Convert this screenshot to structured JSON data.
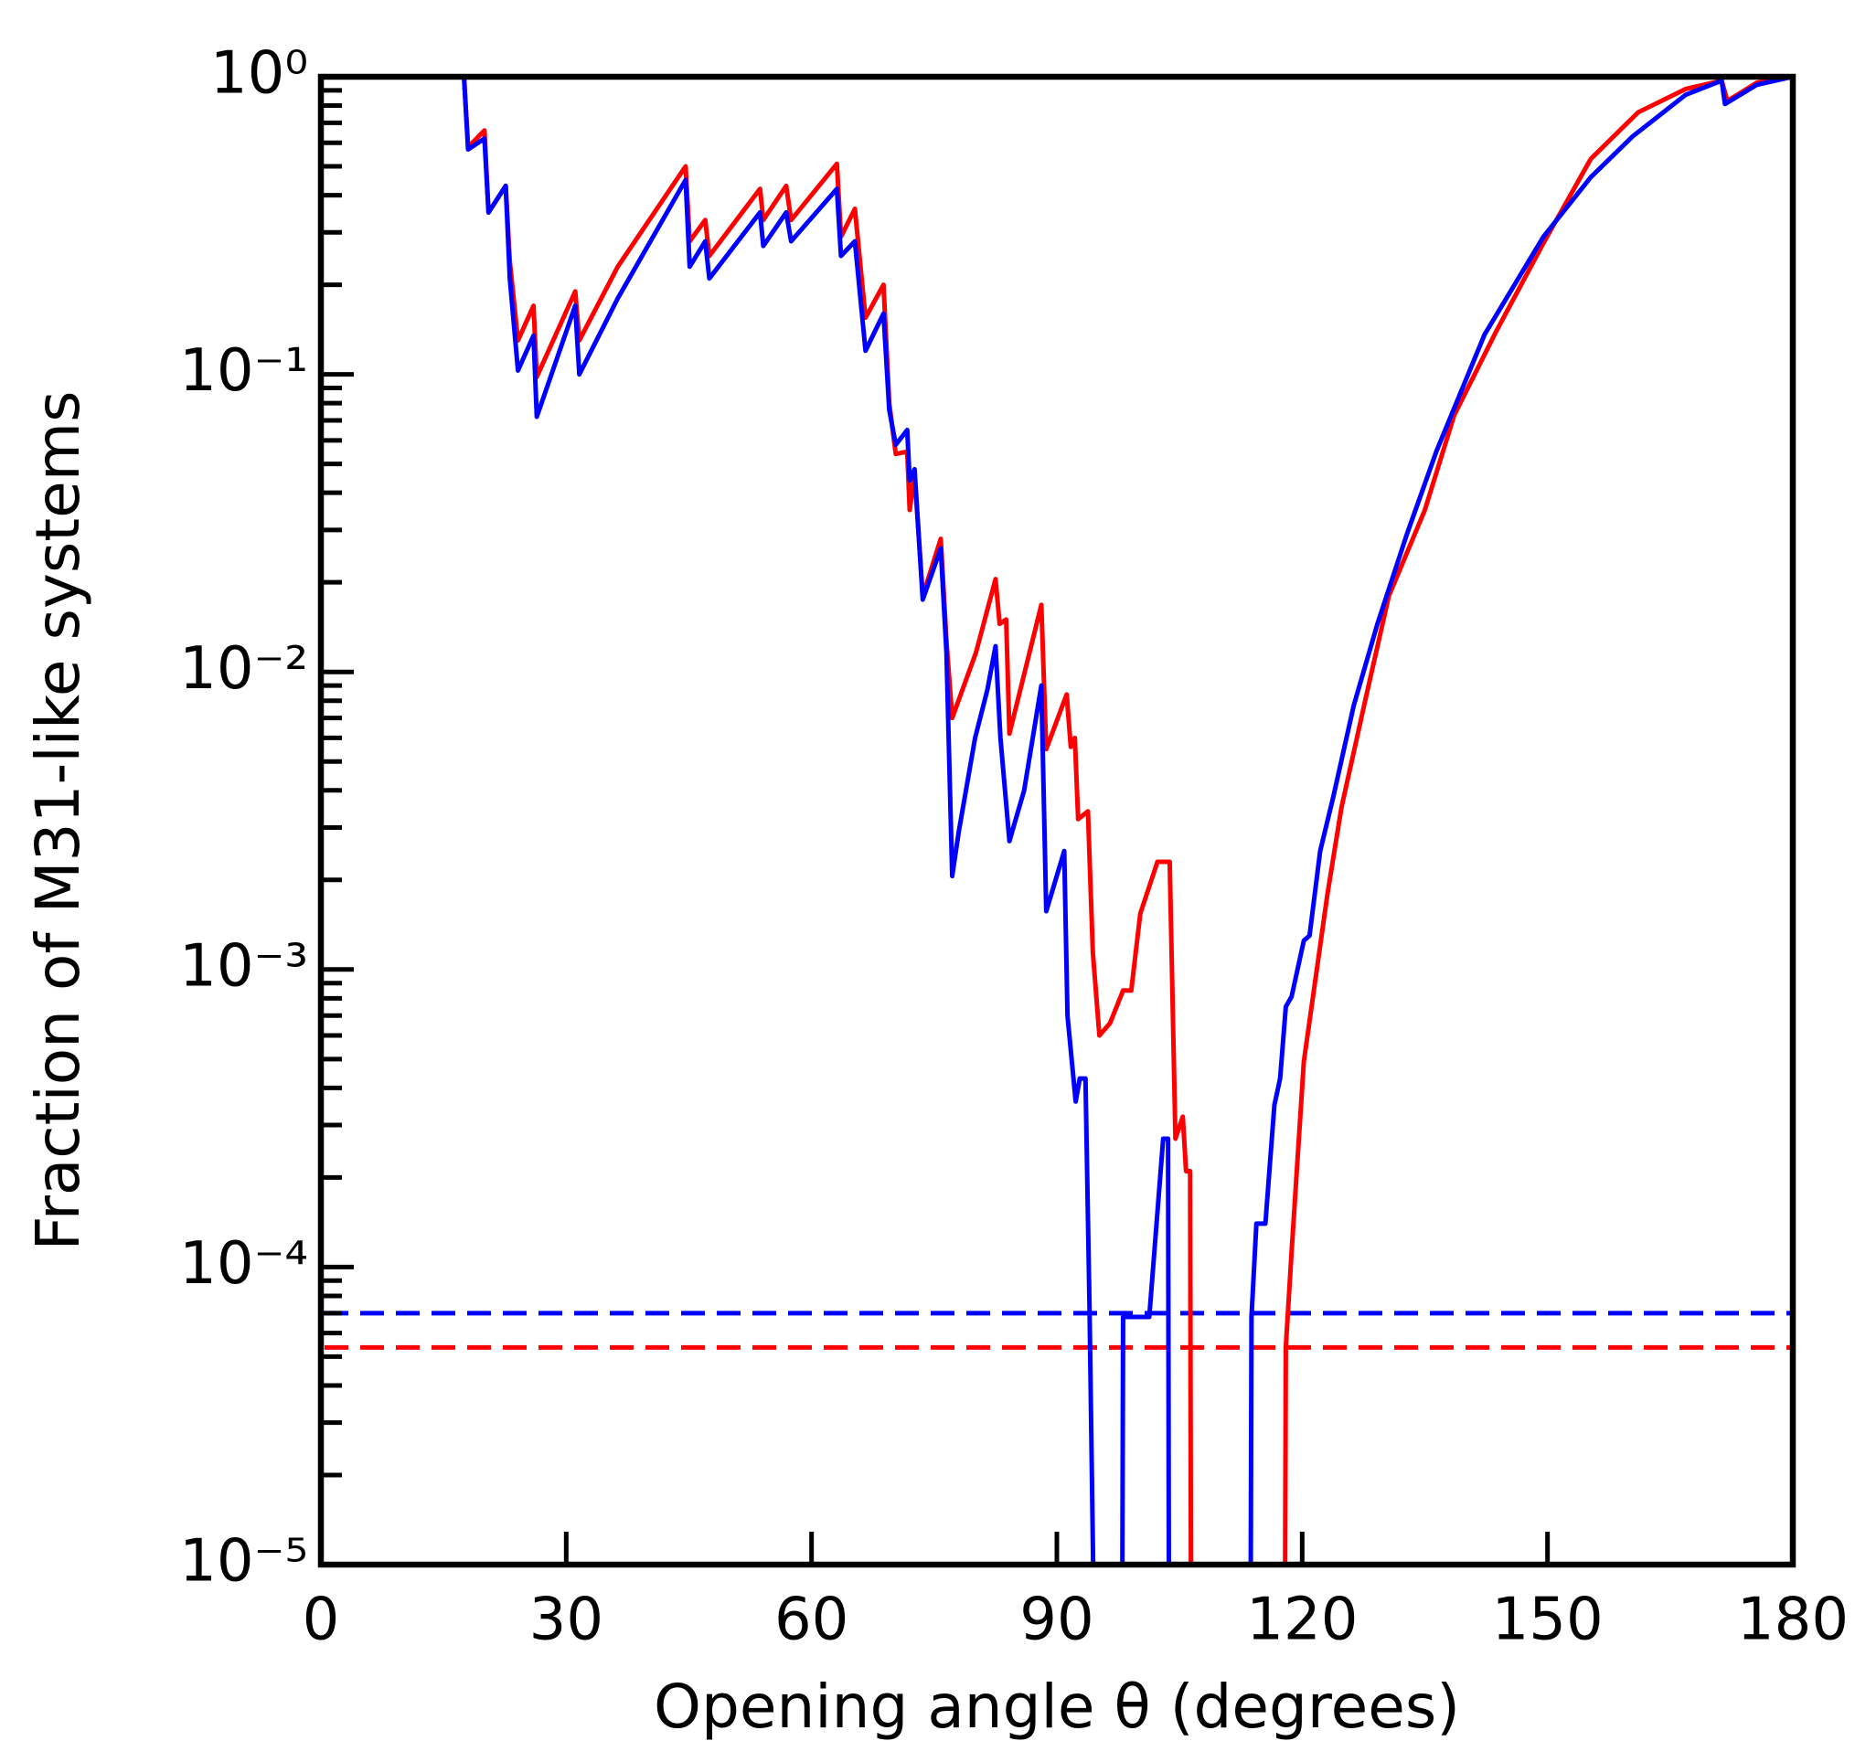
{
  "chart_data": {
    "type": "line",
    "xlabel": "Opening angle θ (degrees)",
    "ylabel": "Fraction of M31-like systems",
    "xlim": [
      0,
      180
    ],
    "xticks": [
      0,
      30,
      60,
      90,
      120,
      150,
      180
    ],
    "ylim": [
      1e-05,
      1
    ],
    "log_y": true,
    "yticks": [
      {
        "value": 1,
        "label": "10⁰"
      },
      {
        "value": 0.1,
        "label": "10⁻¹"
      },
      {
        "value": 0.01,
        "label": "10⁻²"
      },
      {
        "value": 0.001,
        "label": "10⁻³"
      },
      {
        "value": 0.0001,
        "label": "10⁻⁴"
      },
      {
        "value": 1e-05,
        "label": "10⁻⁵"
      }
    ],
    "series": [
      {
        "color": "#ff0000",
        "x": [
          17.5,
          18,
          20,
          20.5,
          22.6,
          23.1,
          24.1,
          26,
          26.4,
          31.1,
          31.6,
          36.3,
          44.6,
          45.1,
          47,
          47.5,
          53.7,
          54.1,
          56.9,
          57.5,
          63.1,
          63.6,
          65.3,
          66.6,
          68.8,
          69.5,
          70.3,
          71.7,
          72,
          72.6,
          73.6,
          75.8,
          76.5,
          77.2,
          80.1,
          82.5,
          83,
          83.8,
          84.2,
          88.1,
          88.7,
          91.2,
          91.7,
          92.2,
          92.6,
          93.8,
          94.4,
          95.2,
          96.5,
          98.1,
          99.1,
          100.2,
          102.3,
          103.8,
          104.5,
          105.4,
          105.8,
          106.3,
          106.4,
          117.9,
          118,
          118.7,
          120.2,
          123.1,
          124.8,
          127.7,
          130.6,
          135,
          138.6,
          143.7,
          149.5,
          155.3,
          161.1,
          166.9,
          171.3,
          172,
          175.6,
          180
        ],
        "values": [
          1,
          0.58,
          0.66,
          0.35,
          0.43,
          0.24,
          0.13,
          0.17,
          0.098,
          0.19,
          0.13,
          0.23,
          0.5,
          0.28,
          0.33,
          0.25,
          0.42,
          0.33,
          0.43,
          0.33,
          0.51,
          0.29,
          0.36,
          0.155,
          0.2,
          0.08,
          0.054,
          0.055,
          0.035,
          0.046,
          0.018,
          0.028,
          0.0127,
          0.007,
          0.0116,
          0.0205,
          0.0145,
          0.015,
          0.0062,
          0.0168,
          0.0055,
          0.0084,
          0.0056,
          0.006,
          0.0032,
          0.0034,
          0.00114,
          0.0006,
          0.00066,
          0.00085,
          0.00085,
          0.00154,
          0.0023,
          0.0023,
          0.00027,
          0.00032,
          0.00021,
          0.00021,
          0,
          0,
          5.4e-05,
          0.000112,
          0.00049,
          0.0018,
          0.0035,
          0.008,
          0.018,
          0.035,
          0.073,
          0.139,
          0.276,
          0.53,
          0.76,
          0.91,
          0.97,
          0.83,
          0.955,
          1
        ]
      },
      {
        "color": "#0000ff",
        "x": [
          17.5,
          18,
          20,
          20.5,
          22.6,
          23.1,
          24.1,
          26,
          26.4,
          31.1,
          31.6,
          36.3,
          44.6,
          45.1,
          47,
          47.5,
          53.7,
          54.1,
          56.9,
          57.5,
          63.1,
          63.6,
          65.3,
          66.6,
          68.8,
          69.5,
          70.3,
          71.7,
          72,
          72.6,
          73.6,
          75.8,
          76.5,
          77.2,
          78,
          80,
          81.5,
          82.5,
          83.1,
          84.2,
          86,
          88.1,
          88.7,
          90.9,
          91.3,
          92.3,
          92.8,
          93.5,
          94,
          94.5,
          98,
          98.1,
          101.3,
          103,
          103.6,
          103.7,
          113.7,
          113.8,
          114.4,
          115.5,
          116.6,
          117.3,
          118,
          118.7,
          120.2,
          120.9,
          122.2,
          123.8,
          126.3,
          129.2,
          132.8,
          136.4,
          142.3,
          149.5,
          155.3,
          160.4,
          166.9,
          171.3,
          171.7,
          175.6,
          180
        ],
        "values": [
          1,
          0.57,
          0.62,
          0.35,
          0.43,
          0.21,
          0.103,
          0.135,
          0.072,
          0.17,
          0.1,
          0.18,
          0.45,
          0.23,
          0.28,
          0.21,
          0.35,
          0.27,
          0.35,
          0.28,
          0.42,
          0.25,
          0.28,
          0.12,
          0.16,
          0.076,
          0.058,
          0.065,
          0.044,
          0.048,
          0.0175,
          0.026,
          0.0116,
          0.00206,
          0.0029,
          0.006,
          0.0087,
          0.0122,
          0.006,
          0.0027,
          0.004,
          0.009,
          0.00157,
          0.0025,
          0.0007,
          0.00036,
          0.00043,
          0.00043,
          7.1e-05,
          0,
          0,
          6.8e-05,
          6.8e-05,
          0.00027,
          0.00027,
          0,
          0,
          6.8e-05,
          0.00014,
          0.00014,
          0.00035,
          0.00043,
          0.00075,
          0.00081,
          0.00125,
          0.0013,
          0.0025,
          0.0038,
          0.0077,
          0.0145,
          0.029,
          0.055,
          0.136,
          0.29,
          0.46,
          0.63,
          0.87,
          0.97,
          0.81,
          0.94,
          1
        ]
      }
    ],
    "reference_lines": [
      {
        "value": 7e-05,
        "color": "#0000ff",
        "dashed": true
      },
      {
        "value": 5.37e-05,
        "color": "#ff0000",
        "dashed": true
      }
    ]
  }
}
